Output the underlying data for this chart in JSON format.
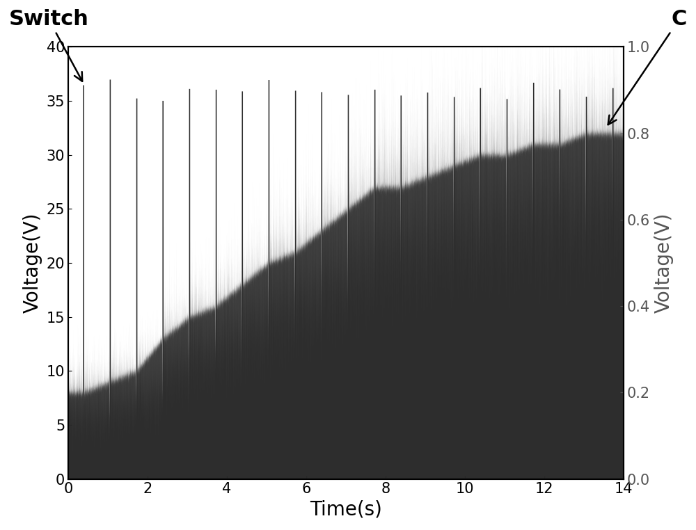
{
  "xlabel": "Time(s)",
  "ylabel_left": "Voltage(V)",
  "ylabel_right": "Voltage(V)",
  "xlim": [
    0,
    14
  ],
  "ylim_left": [
    0,
    40
  ],
  "ylim_right": [
    0.0,
    1.0
  ],
  "yticks_left": [
    0,
    5,
    10,
    15,
    20,
    25,
    30,
    35,
    40
  ],
  "yticks_right": [
    0.0,
    0.2,
    0.4,
    0.6,
    0.8,
    1.0
  ],
  "xticks": [
    0,
    2,
    4,
    6,
    8,
    10,
    12,
    14
  ],
  "label_switch": "Switch",
  "label_C": "C",
  "background_color": "#ffffff",
  "line_color": "#2d2d2d",
  "fontsize_label": 20,
  "fontsize_tick": 15,
  "fontsize_annotation": 22,
  "discharge_times": [
    0.38,
    1.05,
    1.72,
    2.38,
    3.05,
    3.72,
    4.38,
    5.05,
    5.72,
    6.38,
    7.05,
    7.72,
    8.38,
    9.05,
    9.72,
    10.38,
    11.05,
    11.72,
    12.38,
    13.05,
    13.72
  ],
  "charge_levels": [
    8,
    8,
    9,
    10,
    13,
    15,
    16,
    18,
    20,
    21,
    23,
    25,
    27,
    27,
    28,
    29,
    30,
    30,
    31,
    31,
    32
  ],
  "n_samples": 50000
}
